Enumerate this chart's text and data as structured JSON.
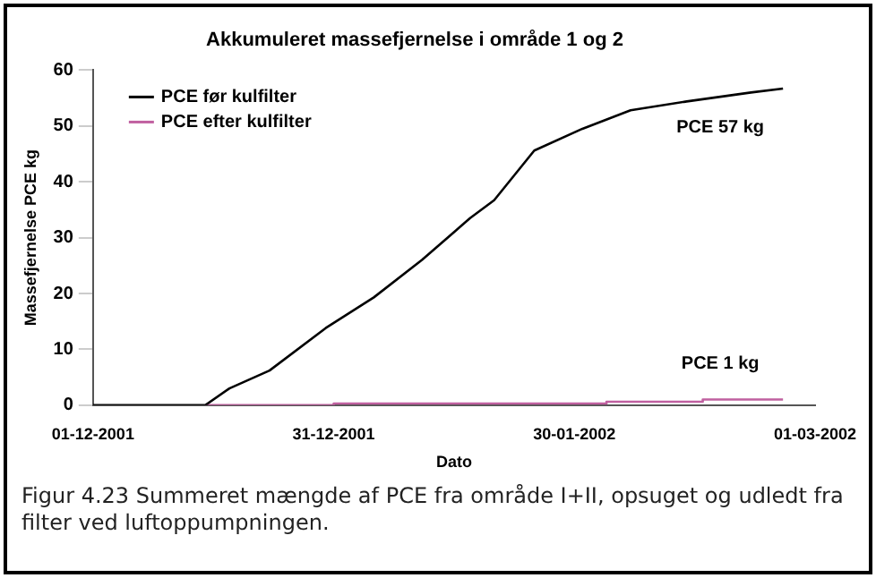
{
  "chart_data": {
    "type": "line",
    "title": "Akkumuleret massefjernelse i område 1 og 2",
    "xlabel": "Dato",
    "ylabel": "Massefjernelse PCE kg",
    "xlim": [
      "2001-12-01",
      "2002-03-01"
    ],
    "xticks": [
      {
        "value": "2001-12-01",
        "label": "01-12-2001"
      },
      {
        "value": "2001-12-31",
        "label": "31-12-2001"
      },
      {
        "value": "2002-01-30",
        "label": "30-01-2002"
      },
      {
        "value": "2002-03-01",
        "label": "01-03-2002"
      }
    ],
    "ylim": [
      0,
      60
    ],
    "yticks": [
      0,
      10,
      20,
      30,
      40,
      50,
      60
    ],
    "series": [
      {
        "name": "PCE før kulfilter",
        "color": "#000000",
        "x": [
          "2001-12-01",
          "2001-12-15",
          "2001-12-18",
          "2001-12-23",
          "2001-12-30",
          "2002-01-05",
          "2002-01-11",
          "2002-01-17",
          "2002-01-20",
          "2002-01-25",
          "2002-01-31",
          "2002-02-06",
          "2002-02-13",
          "2002-02-21",
          "2002-02-25"
        ],
        "values": [
          0,
          0,
          3,
          6.2,
          13.8,
          19.3,
          26,
          33.5,
          36.7,
          45.6,
          49.5,
          52.8,
          54.4,
          56,
          56.7
        ]
      },
      {
        "name": "PCE efter kulfilter",
        "type": "step",
        "color": "#c060a0",
        "x": [
          "2001-12-15",
          "2001-12-31",
          "2002-02-03",
          "2002-02-15",
          "2002-02-25"
        ],
        "values": [
          0,
          0.3,
          0.6,
          1,
          1
        ]
      }
    ],
    "legend": "top left",
    "grid": false,
    "marker": "none",
    "line_style": "solid",
    "annotations": [
      "PCE 57 kg",
      "PCE 1 kg",
      "Figur 4.23 Summeret mængde af PCE fra område I+II, opsuget og udledt fra filter ved luftoppumpningen."
    ]
  }
}
